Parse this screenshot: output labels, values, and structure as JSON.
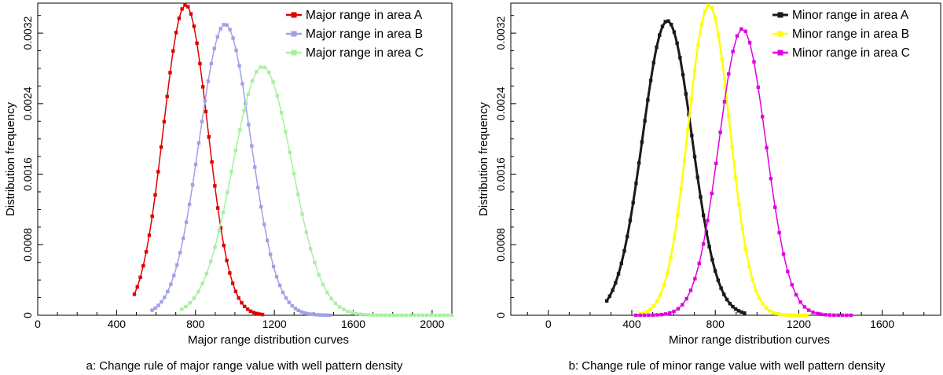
{
  "figure": {
    "panels": [
      {
        "caption": "a: Change rule of major range value with well pattern density",
        "chart_index": 0
      },
      {
        "caption": "b: Change rule of minor range value with well pattern density",
        "chart_index": 1
      }
    ]
  },
  "chart_data": [
    {
      "type": "line",
      "xlabel": "Major range distribution curves",
      "ylabel": "Distribution frequency",
      "xlim": [
        0,
        2100
      ],
      "ylim": [
        0,
        0.00354
      ],
      "x_ticks": [
        0,
        400,
        800,
        1200,
        1600,
        2000
      ],
      "x_tick_labels": [
        "0",
        "400",
        "800",
        "1200",
        "1600",
        "2000"
      ],
      "y_ticks": [
        0,
        0.0008,
        0.0016,
        0.0024,
        0.0032
      ],
      "y_tick_labels": [
        "0",
        "0.0008",
        "0.0016",
        "0.0024",
        "0.0032"
      ],
      "grid": false,
      "legend_position": "top-right",
      "marker": "square",
      "series": [
        {
          "name": "Major range in area A",
          "color": "#e00000",
          "line_width": 1.5,
          "mean": 750,
          "std": 112,
          "peak": 0.00352,
          "x_range": [
            490,
            1140
          ],
          "n_points": 44
        },
        {
          "name": "Major range in area B",
          "color": "#a0a0e8",
          "line_width": 1.5,
          "mean": 950,
          "std": 130,
          "peak": 0.0033,
          "x_range": [
            580,
            1480
          ],
          "n_points": 58
        },
        {
          "name": "Major range in area C",
          "color": "#a8f0a0",
          "line_width": 1.5,
          "mean": 1140,
          "std": 150,
          "peak": 0.00282,
          "x_range": [
            730,
            2100
          ],
          "n_points": 66
        }
      ]
    },
    {
      "type": "line",
      "xlabel": "Minor range distribution curves",
      "ylabel": "Distribution frequency",
      "xlim": [
        -180,
        1880
      ],
      "ylim": [
        0,
        0.00354
      ],
      "x_ticks": [
        0,
        400,
        800,
        1200,
        1600
      ],
      "x_tick_labels": [
        "0",
        "400",
        "800",
        "1200",
        "1600"
      ],
      "y_ticks": [
        0,
        0.0008,
        0.0016,
        0.0024,
        0.0032
      ],
      "y_tick_labels": [
        "0",
        "0.0008",
        "0.0016",
        "0.0024",
        "0.0032"
      ],
      "grid": false,
      "legend_position": "top-right",
      "marker": "square",
      "series": [
        {
          "name": "Minor range in area A",
          "color": "#1a1a1a",
          "line_width": 3,
          "mean": 570,
          "std": 118,
          "peak": 0.00334,
          "x_range": [
            280,
            940
          ],
          "n_points": 48
        },
        {
          "name": "Minor range in area B",
          "color": "#ffff00",
          "line_width": 2.5,
          "mean": 770,
          "std": 100,
          "peak": 0.00352,
          "x_range": [
            440,
            1240
          ],
          "n_points": 50
        },
        {
          "name": "Minor range in area C",
          "color": "#e000e0",
          "line_width": 1.5,
          "mean": 930,
          "std": 112,
          "peak": 0.00325,
          "x_range": [
            420,
            1450
          ],
          "n_points": 52
        }
      ]
    }
  ]
}
